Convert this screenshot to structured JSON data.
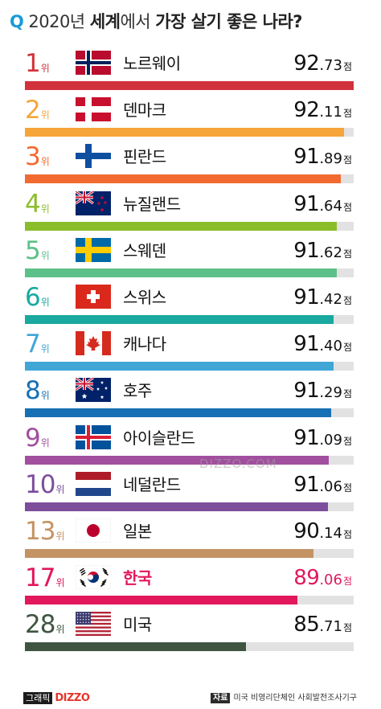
{
  "title": {
    "q": "Q",
    "part1": "2020년 ",
    "part2": "세계",
    "part3": "에서 ",
    "part4": "가장 살기 좋은 나라?"
  },
  "watermark": "DIZZO.COM",
  "footer": {
    "brand_label": "그래픽",
    "brand_name": "DIZZO",
    "source_label": "자료",
    "source_text": "미국 비영리단체인 사회발전조사기구"
  },
  "chart_data": {
    "type": "bar",
    "orientation": "horizontal",
    "title": "2020년 세계에서 가장 살기 좋은 나라?",
    "unit": "점",
    "rank_unit": "위",
    "xlim": [
      0,
      100
    ],
    "categories": [
      "노르웨이",
      "덴마크",
      "핀란드",
      "뉴질랜드",
      "스웨덴",
      "스위스",
      "캐나다",
      "호주",
      "아이슬란드",
      "네덜란드",
      "일본",
      "한국",
      "미국"
    ],
    "ranks": [
      1,
      2,
      3,
      4,
      5,
      6,
      7,
      8,
      9,
      10,
      13,
      17,
      28
    ],
    "values": [
      92.73,
      92.11,
      91.89,
      91.64,
      91.62,
      91.42,
      91.4,
      91.29,
      91.09,
      91.06,
      90.14,
      89.06,
      85.71
    ],
    "value_int": [
      "92",
      "92",
      "91",
      "91",
      "91",
      "91",
      "91",
      "91",
      "91",
      "91",
      "90",
      "89",
      "85"
    ],
    "value_dec": [
      ".73",
      ".11",
      ".89",
      ".64",
      ".62",
      ".42",
      ".40",
      ".29",
      ".09",
      ".06",
      ".14",
      ".06",
      ".71"
    ],
    "flags": [
      "norway-flag",
      "denmark-flag",
      "finland-flag",
      "new-zealand-flag",
      "sweden-flag",
      "switzerland-flag",
      "canada-flag",
      "australia-flag",
      "iceland-flag",
      "netherlands-flag",
      "japan-flag",
      "korea-flag",
      "usa-flag"
    ],
    "colors": [
      "#d2323c",
      "#f5a53a",
      "#f26a30",
      "#8bbd2b",
      "#5cc089",
      "#19a9a1",
      "#3fa6d6",
      "#1670b4",
      "#a14f9e",
      "#7d4e9c",
      "#c49363",
      "#e2185c",
      "#3f5541"
    ],
    "highlight_index": 11
  }
}
